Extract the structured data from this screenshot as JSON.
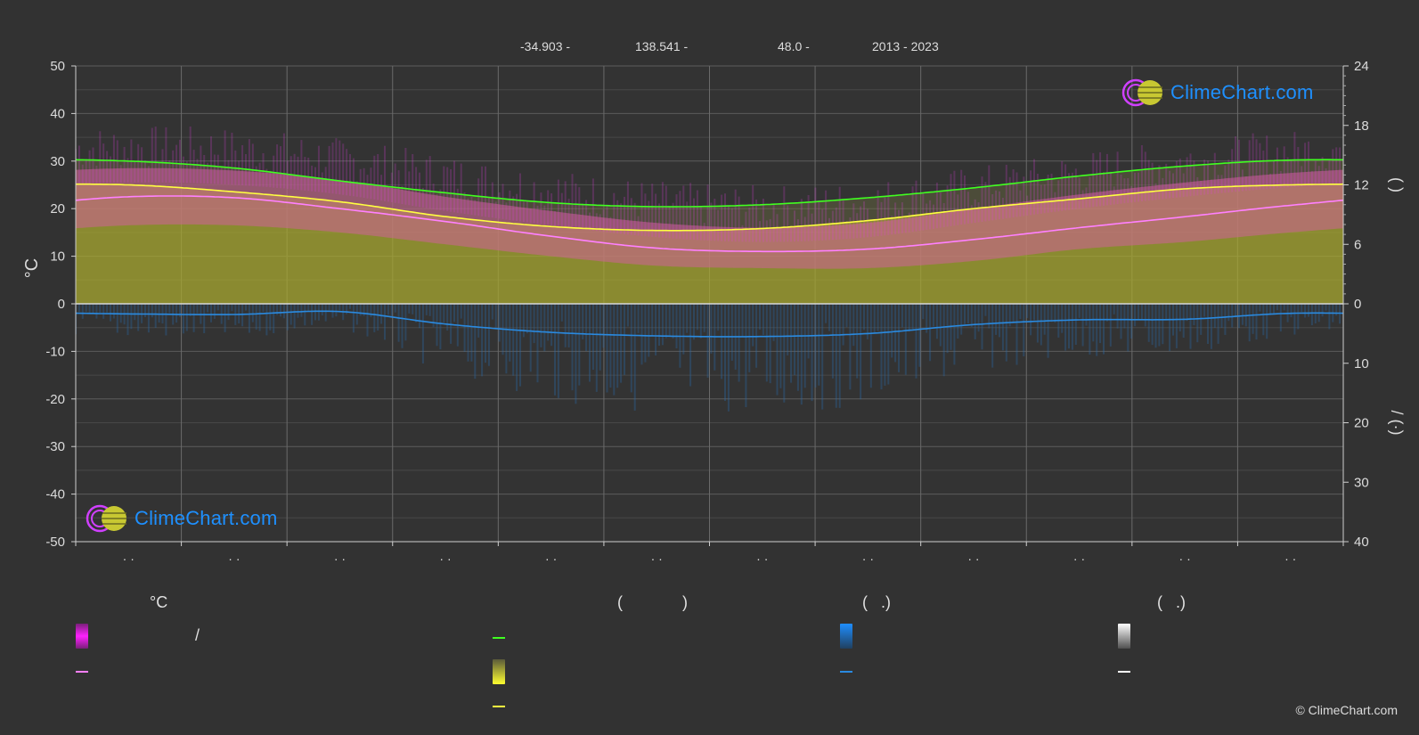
{
  "header": {
    "info": [
      "-34.903 -",
      "138.541 -",
      "48.0 -",
      "2013 - 2023"
    ]
  },
  "brand": {
    "logo_text": "ClimeChart.com",
    "copyright": "© ClimeChart.com"
  },
  "colors": {
    "background": "#323232",
    "grid": "#5a5a5a",
    "temp_band": "#e040e0",
    "daily_mean": "#ff80ff",
    "daylight": "#40ff20",
    "sunshine": "#ffff40",
    "sunshine_band": "#a8a830",
    "precip": "#2a8ae0",
    "snow": "#ffffff",
    "logo": "#1e90ff"
  },
  "legend": {
    "temp_header": "°C",
    "sun_header_open": "(",
    "sun_header_close": ")",
    "rain_header": "(   .)",
    "snow_header": "(   .)",
    "slash": "/"
  },
  "chart_data": {
    "type": "area",
    "left_axis": {
      "label": "°C",
      "ticks": [
        "50",
        "40",
        "30",
        "20",
        "10",
        "0",
        "-10",
        "-20",
        "-30",
        "-40",
        "-50"
      ],
      "ylim": [
        -50,
        50
      ]
    },
    "right_axis_top": {
      "ticks": [
        "24",
        "18",
        "12",
        "6",
        "0"
      ],
      "ylim": [
        0,
        24
      ],
      "label": "(    )"
    },
    "right_axis_bottom": {
      "ticks": [
        "10",
        "20",
        "30",
        "40"
      ],
      "ylim": [
        0,
        40
      ],
      "label": "/   (·)"
    },
    "x_tick_labels": [
      "· ·",
      "· ·",
      "· ·",
      "· ·",
      "· ·",
      "· ·",
      "· ·",
      "· ·",
      "· ·",
      "· ·",
      "· ·",
      "· ·"
    ],
    "months": 12,
    "series": [
      {
        "key": "daylight",
        "axis": "right_top",
        "values": [
          14.4,
          13.7,
          12.4,
          11.2,
          10.2,
          9.8,
          10.0,
          10.7,
          11.7,
          12.9,
          13.9,
          14.5
        ]
      },
      {
        "key": "sunshine",
        "axis": "right_top",
        "values": [
          12.0,
          11.3,
          10.3,
          8.8,
          7.8,
          7.4,
          7.6,
          8.4,
          9.6,
          10.6,
          11.6,
          12.0
        ]
      },
      {
        "key": "daily_mean",
        "axis": "left",
        "values": [
          22.5,
          22.3,
          20.0,
          17.3,
          14.2,
          11.7,
          11.0,
          11.5,
          13.5,
          16.0,
          18.3,
          20.7
        ]
      },
      {
        "key": "precip",
        "axis": "right_bottom",
        "values": [
          1.7,
          1.8,
          1.3,
          3.4,
          4.8,
          5.4,
          5.5,
          5.0,
          3.5,
          2.7,
          2.6,
          1.6
        ]
      }
    ],
    "temp_band": {
      "max": [
        28.5,
        28.0,
        26.0,
        22.5,
        19.5,
        17.0,
        16.0,
        17.0,
        20.0,
        23.0,
        25.5,
        27.5
      ],
      "min": [
        16.5,
        16.5,
        15.0,
        12.5,
        10.0,
        8.0,
        7.5,
        7.5,
        9.0,
        11.5,
        13.0,
        15.0
      ]
    }
  }
}
